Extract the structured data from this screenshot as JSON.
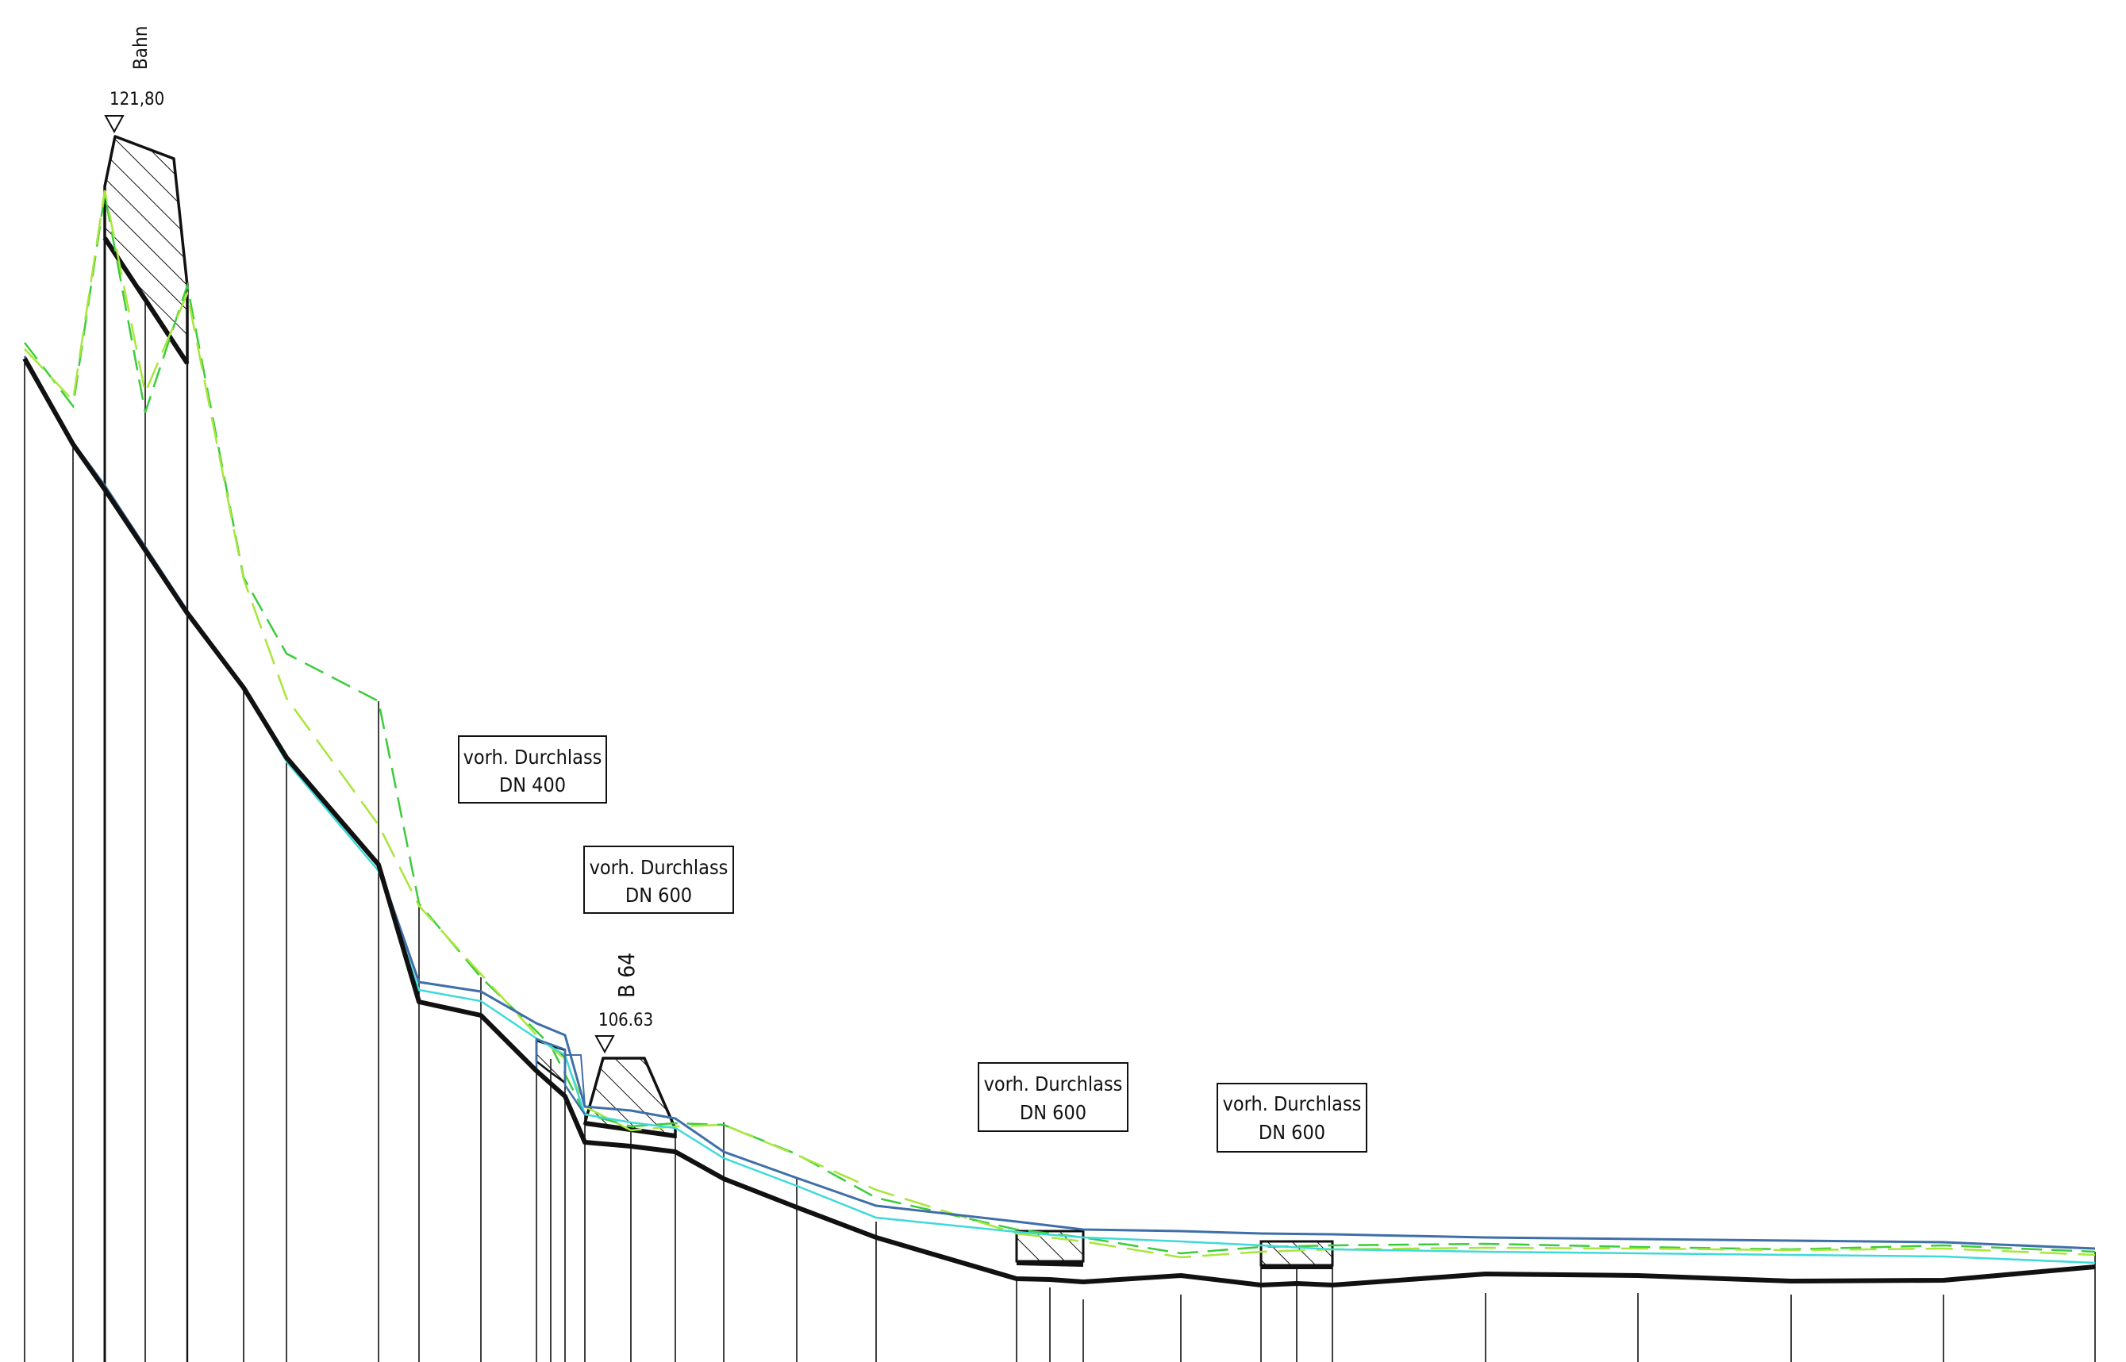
{
  "drawing": {
    "markers": [
      {
        "id": "bahn",
        "name": "Bahn",
        "elevation": "121,80"
      },
      {
        "id": "b64",
        "name": "B 64",
        "elevation": "106.63"
      }
    ],
    "culverts": [
      {
        "line1": "vorh. Durchlass",
        "line2": "DN 400"
      },
      {
        "line1": "vorh. Durchlass",
        "line2": "DN 600"
      },
      {
        "line1": "vorh. Durchlass",
        "line2": "DN 600"
      },
      {
        "line1": "vorh. Durchlass",
        "line2": "DN 600"
      }
    ]
  },
  "colors": {
    "ground": "#000000",
    "blue_line": "#3f6fa8",
    "cyan_line": "#3fd9d9",
    "green_dashed": "#3bcc3b",
    "yellowgreen_dashed": "#a8e63b"
  }
}
